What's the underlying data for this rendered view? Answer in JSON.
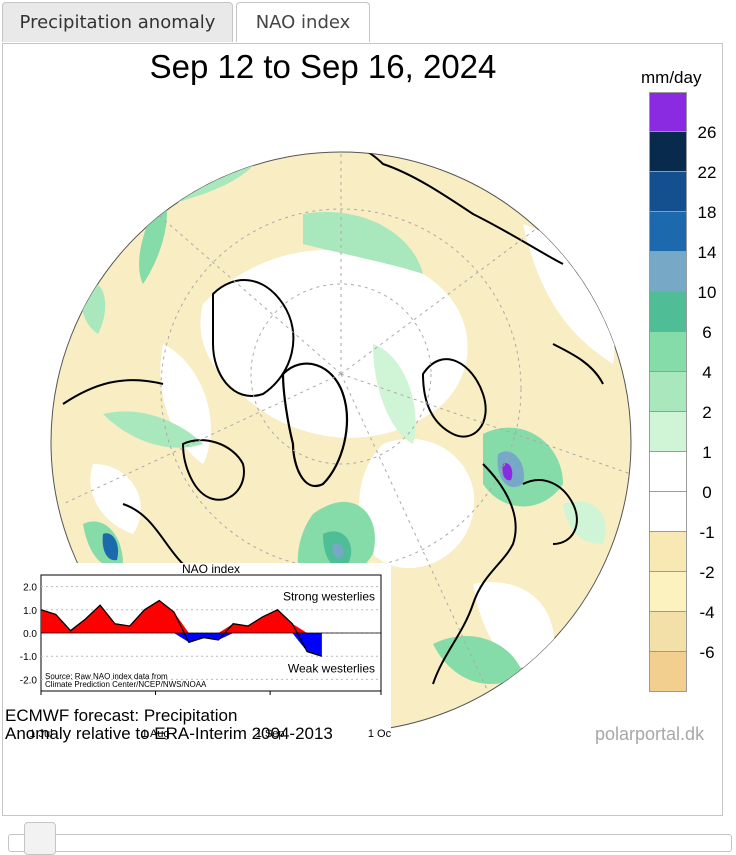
{
  "tabs": [
    {
      "label": "Precipitation anomaly",
      "active": true
    },
    {
      "label": "NAO index",
      "active": false
    }
  ],
  "map": {
    "title": "Sep 12 to Sep 16, 2024",
    "footer_line1": "ECMWF forecast: Precipitation",
    "footer_line2": "Anomaly relative to ERA-Interim 2004-2013",
    "credit": "polarportal.dk"
  },
  "legend": {
    "unit": "mm/day",
    "colors": [
      "#8a2be2",
      "#082a4c",
      "#14508f",
      "#1c6aad",
      "#77a9c7",
      "#4fbd95",
      "#86dca8",
      "#a9e8bd",
      "#cff5d6",
      "#ffffff",
      "#ffffff",
      "#f7e8b4",
      "#fbf2c0",
      "#f2e0a8",
      "#f2cf8e"
    ],
    "ticks": [
      "26",
      "22",
      "18",
      "14",
      "10",
      "6",
      "4",
      "2",
      "1",
      "0",
      "-1",
      "-2",
      "-4",
      "-6"
    ]
  },
  "nao": {
    "title": "NAO index",
    "y_ticks": [
      "2.0",
      "1.0",
      "0.0",
      "-1.0",
      "-2.0"
    ],
    "x_ticks": [
      "1 Jul",
      "1 Aug",
      "1 Sep",
      "1 Oct"
    ],
    "label_strong": "Strong westerlies",
    "label_weak": "Weak westerlies",
    "source": [
      "Source: Raw NAO index data from",
      "Climate Prediction Center/NCEP/NWS/NOAA"
    ],
    "chart_data": {
      "type": "area",
      "x": [
        "Jul 1",
        "Jul 5",
        "Jul 9",
        "Jul 13",
        "Jul 17",
        "Jul 21",
        "Jul 25",
        "Jul 29",
        "Aug 2",
        "Aug 6",
        "Aug 10",
        "Aug 14",
        "Aug 18",
        "Aug 22",
        "Aug 26",
        "Aug 30",
        "Sep 3",
        "Sep 7",
        "Sep 11",
        "Sep 15"
      ],
      "values": [
        1.0,
        0.8,
        0.1,
        0.6,
        1.2,
        0.4,
        0.3,
        1.0,
        1.4,
        0.9,
        -0.4,
        -0.2,
        -0.3,
        0.4,
        0.3,
        0.7,
        1.0,
        0.4,
        -0.8,
        -1.0
      ],
      "ylim": [
        -2.5,
        2.5
      ],
      "colors": {
        "positive": "#ff0000",
        "negative": "#0000ff"
      }
    }
  }
}
